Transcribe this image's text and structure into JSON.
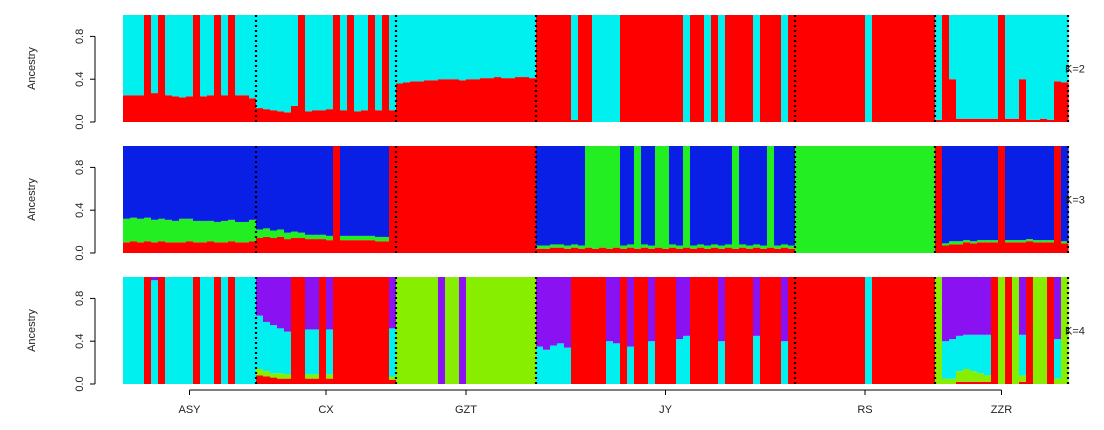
{
  "chart_data": {
    "type": "bar",
    "stacked": true,
    "colors": {
      "red": "#ff0000",
      "cyan": "#00f0f0",
      "blue": "#0a1fe6",
      "green": "#22ee22",
      "purple": "#8a12f2",
      "lime": "#88ee00"
    },
    "populations": [
      {
        "label": "ASY",
        "n": 19
      },
      {
        "label": "CX",
        "n": 20
      },
      {
        "label": "GZT",
        "n": 20
      },
      {
        "label": "JY",
        "n": 37
      },
      {
        "label": "RS",
        "n": 20
      },
      {
        "label": "ZZR",
        "n": 19
      }
    ],
    "panels": [
      {
        "k_label": "K=2",
        "ylabel": "Ancestry",
        "ylim": [
          0,
          1
        ],
        "yticks": [
          "0.0",
          "0.4",
          "0.8"
        ],
        "components": [
          "red",
          "cyan"
        ],
        "red_by_population": [
          [
            0.25,
            0.25,
            0.25,
            1,
            0.27,
            1,
            0.25,
            0.24,
            0.23,
            0.24,
            1,
            0.24,
            0.25,
            1,
            0.25,
            1,
            0.25,
            0.25,
            0.22
          ],
          [
            0.13,
            0.12,
            0.11,
            0.1,
            0.09,
            0.15,
            1,
            0.1,
            0.11,
            0.11,
            0.12,
            1,
            0.11,
            1,
            0.1,
            0.11,
            1,
            0.11,
            1,
            0.11
          ],
          [
            0.36,
            0.37,
            0.38,
            0.38,
            0.39,
            0.39,
            0.4,
            0.4,
            0.4,
            0.39,
            0.4,
            0.4,
            0.41,
            0.41,
            0.42,
            0.41,
            0.41,
            0.42,
            0.42,
            0.41
          ],
          [
            1,
            1,
            1,
            1,
            1,
            0.02,
            1,
            1,
            0,
            0,
            0,
            0,
            1,
            1,
            1,
            1,
            1,
            1,
            1,
            1,
            1,
            0,
            1,
            1,
            0,
            1,
            0,
            1,
            1,
            1,
            1,
            0,
            1,
            1,
            1,
            0,
            1
          ],
          [
            1,
            1,
            1,
            1,
            1,
            1,
            1,
            1,
            1,
            1,
            0,
            1,
            1,
            1,
            1,
            1,
            1,
            1,
            1,
            1
          ],
          [
            0.02,
            1,
            0.4,
            0.03,
            0.03,
            0.03,
            0.03,
            0.03,
            0.03,
            1,
            0.03,
            0.03,
            0.4,
            0.02,
            0.02,
            0.03,
            0.02,
            0.38,
            0.37
          ]
        ]
      },
      {
        "k_label": "K=3",
        "ylabel": "Ancestry",
        "ylim": [
          0,
          1
        ],
        "yticks": [
          "0.0",
          "0.4",
          "0.8"
        ],
        "components": [
          "red",
          "green",
          "blue"
        ],
        "red_by_population": [
          [
            0.1,
            0.11,
            0.1,
            0.11,
            0.1,
            0.11,
            0.1,
            0.1,
            0.1,
            0.11,
            0.1,
            0.1,
            0.11,
            0.1,
            0.1,
            0.11,
            0.1,
            0.1,
            0.11
          ],
          [
            0.14,
            0.15,
            0.14,
            0.15,
            0.13,
            0.14,
            0.14,
            0.13,
            0.13,
            0.13,
            0.12,
            1,
            0.12,
            0.12,
            0.12,
            0.12,
            0.12,
            0.11,
            0.11,
            1
          ],
          [
            1,
            1,
            1,
            1,
            1,
            1,
            1,
            1,
            1,
            1,
            1,
            1,
            1,
            1,
            1,
            1,
            1,
            1,
            1,
            1
          ],
          [
            0.04,
            0.04,
            0.05,
            0.05,
            0.04,
            0.05,
            0.04,
            0.05,
            0.04,
            0.05,
            0.04,
            0.05,
            0.04,
            0.05,
            0.04,
            0.05,
            0.04,
            0.05,
            0.04,
            0.05,
            0.04,
            0.05,
            0.04,
            0.05,
            0.04,
            0.05,
            0.04,
            0.05,
            0.04,
            0.05,
            0.04,
            0.05,
            0.04,
            0.05,
            0.04,
            0.05,
            0.04
          ],
          [
            0,
            0,
            0,
            0,
            0,
            0,
            0,
            0,
            0,
            0,
            0,
            0,
            0,
            0,
            0,
            0,
            0,
            0,
            0,
            0
          ],
          [
            1,
            0.07,
            0.08,
            0.08,
            0.1,
            0.09,
            0.1,
            0.1,
            0.1,
            1,
            0.1,
            0.1,
            0.1,
            0.11,
            0.1,
            0.1,
            0.1,
            1,
            0.09
          ]
        ],
        "green_by_population": [
          [
            0.22,
            0.22,
            0.22,
            0.22,
            0.21,
            0.21,
            0.21,
            0.2,
            0.22,
            0.21,
            0.2,
            0.2,
            0.19,
            0.19,
            0.2,
            0.2,
            0.19,
            0.19,
            0.2
          ],
          [
            0.08,
            0.08,
            0.07,
            0.07,
            0.06,
            0.06,
            0.05,
            0.04,
            0.04,
            0.04,
            0.04,
            0,
            0.04,
            0.04,
            0.04,
            0.04,
            0.04,
            0.04,
            0.04,
            0
          ],
          [
            0,
            0,
            0,
            0,
            0,
            0,
            0,
            0,
            0,
            0,
            0,
            0,
            0,
            0,
            0,
            0,
            0,
            0,
            0,
            0
          ],
          [
            0.03,
            0.03,
            0.03,
            0.03,
            0.03,
            0.03,
            0.03,
            0.96,
            0.96,
            0.96,
            0.96,
            0.96,
            0.03,
            0.03,
            0.96,
            0.03,
            0.03,
            0.96,
            0.96,
            0.03,
            0.03,
            0.96,
            0.03,
            0.03,
            0.03,
            0.03,
            0.03,
            0.03,
            0.96,
            0.03,
            0.03,
            0.03,
            0.03,
            0.96,
            0.03,
            0.03,
            0.03
          ],
          [
            1,
            1,
            1,
            1,
            1,
            1,
            1,
            1,
            1,
            1,
            1,
            1,
            1,
            1,
            1,
            1,
            1,
            1,
            1,
            1
          ],
          [
            0,
            0.02,
            0.03,
            0.03,
            0.02,
            0.02,
            0.02,
            0.02,
            0.02,
            0,
            0.02,
            0.02,
            0.02,
            0.02,
            0.02,
            0.02,
            0.02,
            0,
            0.02
          ]
        ]
      },
      {
        "k_label": "K=4",
        "ylabel": "Ancestry",
        "ylim": [
          0,
          1
        ],
        "yticks": [
          "0.0",
          "0.4",
          "0.8"
        ],
        "components": [
          "red",
          "lime",
          "cyan",
          "purple"
        ],
        "red_by_population": [
          [
            0,
            0,
            0,
            1,
            0,
            1,
            0,
            0,
            0,
            0,
            1,
            0,
            0,
            1,
            0,
            1,
            0,
            0,
            0
          ],
          [
            0.08,
            0.07,
            0.06,
            0.05,
            0.05,
            1,
            1,
            0.05,
            0.05,
            1,
            0.05,
            1,
            1,
            1,
            1,
            1,
            1,
            1,
            1,
            0.04
          ],
          [
            0,
            0,
            0,
            0,
            0,
            0,
            0,
            0,
            0,
            0,
            0,
            0,
            0,
            0,
            0,
            0,
            0,
            0,
            0,
            0
          ],
          [
            0,
            0,
            0,
            0,
            0,
            1,
            1,
            1,
            1,
            1,
            0,
            0,
            1,
            0,
            1,
            1,
            0,
            1,
            1,
            1,
            0,
            0,
            1,
            1,
            1,
            1,
            0,
            1,
            1,
            1,
            1,
            0,
            1,
            1,
            1,
            0,
            1
          ],
          [
            1,
            1,
            1,
            1,
            1,
            1,
            1,
            1,
            1,
            1,
            0,
            1,
            1,
            1,
            1,
            1,
            1,
            1,
            1,
            1
          ],
          [
            0,
            0,
            0,
            0.02,
            0.02,
            0.02,
            0.02,
            0.02,
            1,
            0,
            1,
            0,
            0.02,
            1,
            0,
            0,
            1,
            0,
            0
          ]
        ],
        "lime_by_population": [
          [
            0,
            0,
            0,
            0,
            0,
            0,
            0,
            0,
            0,
            0,
            0,
            0,
            0,
            0,
            0,
            0,
            0,
            0,
            0
          ],
          [
            0.06,
            0.05,
            0.04,
            0.05,
            0.04,
            0,
            0,
            0.04,
            0.04,
            0,
            0.04,
            0,
            0,
            0,
            0,
            0,
            0,
            0,
            0,
            0.03
          ],
          [
            1,
            1,
            1,
            1,
            1,
            1,
            0,
            1,
            1,
            0,
            1,
            1,
            1,
            1,
            1,
            1,
            1,
            1,
            1,
            1
          ],
          [
            0,
            0,
            0,
            0,
            0,
            0,
            0,
            0,
            0,
            0,
            0,
            0,
            0,
            0,
            0,
            0,
            0,
            0,
            0,
            0,
            0,
            0,
            0,
            0,
            0,
            0,
            0,
            0,
            0,
            0,
            0,
            0,
            0,
            0,
            0,
            0,
            0
          ],
          [
            0,
            0,
            0,
            0,
            0,
            0,
            0,
            0,
            0,
            0,
            0,
            0,
            0,
            0,
            0,
            0,
            0,
            0,
            0,
            0
          ],
          [
            1,
            0.05,
            0.05,
            0.1,
            0.12,
            0.1,
            0.08,
            0.06,
            0,
            1,
            0,
            1,
            0.06,
            0,
            1,
            1,
            0,
            0.05,
            1
          ]
        ],
        "cyan_by_population": [
          [
            1,
            1,
            1,
            0,
            0.97,
            0,
            1,
            1,
            1,
            1,
            0,
            1,
            1,
            0,
            1,
            0,
            1,
            1,
            1
          ],
          [
            0.5,
            0.46,
            0.45,
            0.42,
            0.4,
            0,
            0,
            0.42,
            0.42,
            0,
            0.42,
            0,
            0,
            0,
            0,
            0,
            0,
            0,
            0,
            0.45
          ],
          [
            0,
            0,
            0,
            0,
            0,
            0,
            0,
            0,
            0,
            0,
            0,
            0,
            0,
            0,
            0,
            0,
            0,
            0,
            0,
            0
          ],
          [
            0.35,
            0.32,
            0.36,
            0.38,
            0.34,
            0,
            0,
            0,
            0,
            0,
            0.4,
            0.38,
            0,
            0.35,
            0,
            0,
            0.4,
            0,
            0,
            0,
            0.42,
            0.45,
            0,
            0,
            0,
            0,
            0.4,
            0,
            0,
            0,
            0,
            0.45,
            0,
            0,
            0,
            0.4,
            0
          ],
          [
            0,
            0,
            0,
            0,
            0,
            0,
            0,
            0,
            0,
            0,
            1,
            0,
            0,
            0,
            0,
            0,
            0,
            0,
            0,
            0
          ],
          [
            0,
            0.35,
            0.37,
            0.33,
            0.32,
            0.34,
            0.36,
            0.38,
            0,
            0,
            0,
            0,
            0.38,
            0,
            0,
            0,
            0,
            0.37,
            0
          ]
        ]
      }
    ]
  }
}
